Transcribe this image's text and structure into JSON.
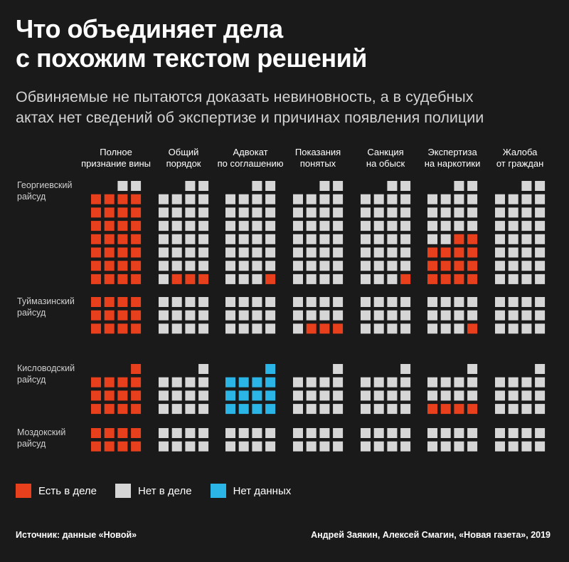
{
  "header": {
    "title_line1": "Что объединяет дела",
    "title_line2": "с похожим текстом решений",
    "subtitle_line1": "Обвиняемые не пытаются доказать невиновность, а в судебных",
    "subtitle_line2": "актах нет сведений об экспертизе и причинах появления полиции"
  },
  "legend": {
    "items": [
      {
        "label": "Есть в деле",
        "color": "#e8401c"
      },
      {
        "label": "Нет в деле",
        "color": "#d6d6d6"
      },
      {
        "label": "Нет данных",
        "color": "#2bb5e6"
      }
    ]
  },
  "footer": {
    "source": "Источник: данные «Новой»",
    "credit": "Андрей Заякин, Алексей Смагин, «Новая газета», 2019"
  },
  "chart_data": {
    "type": "waffle",
    "grid_columns": 4,
    "unit": "one square = one court case",
    "colors": {
      "yes": "#e8401c",
      "no": "#d6d6d6",
      "nodata": "#2bb5e6"
    },
    "columns": [
      [
        "Полное",
        "признание вины"
      ],
      [
        "Общий",
        "порядок"
      ],
      [
        "Адвокат",
        "по соглашению"
      ],
      [
        "Показания",
        "понятых"
      ],
      [
        "Санкция",
        "на обыск"
      ],
      [
        "Экспертиза",
        "на наркотики"
      ],
      [
        "Жалоба",
        "от граждан"
      ]
    ],
    "rows": [
      {
        "label": [
          "Георгиевский",
          "райсуд"
        ],
        "total": 30,
        "cells": [
          {
            "yes": 28,
            "no": 2,
            "nodata": 0
          },
          {
            "yes": 3,
            "no": 27,
            "nodata": 0
          },
          {
            "yes": 1,
            "no": 29,
            "nodata": 0
          },
          {
            "yes": 0,
            "no": 30,
            "nodata": 0
          },
          {
            "yes": 1,
            "no": 29,
            "nodata": 0
          },
          {
            "yes": 14,
            "no": 16,
            "nodata": 0
          },
          {
            "yes": 0,
            "no": 30,
            "nodata": 0
          }
        ]
      },
      {
        "label": [
          "Туймазинский",
          "райсуд"
        ],
        "total": 12,
        "cells": [
          {
            "yes": 12,
            "no": 0,
            "nodata": 0
          },
          {
            "yes": 0,
            "no": 12,
            "nodata": 0
          },
          {
            "yes": 0,
            "no": 12,
            "nodata": 0
          },
          {
            "yes": 3,
            "no": 9,
            "nodata": 0
          },
          {
            "yes": 0,
            "no": 12,
            "nodata": 0
          },
          {
            "yes": 1,
            "no": 11,
            "nodata": 0
          },
          {
            "yes": 0,
            "no": 12,
            "nodata": 0
          }
        ]
      },
      {
        "label": [
          "Кисловодский",
          "райсуд"
        ],
        "total": 13,
        "cells": [
          {
            "yes": 13,
            "no": 0,
            "nodata": 0
          },
          {
            "yes": 0,
            "no": 13,
            "nodata": 0
          },
          {
            "yes": 0,
            "no": 0,
            "nodata": 13
          },
          {
            "yes": 0,
            "no": 13,
            "nodata": 0
          },
          {
            "yes": 0,
            "no": 13,
            "nodata": 0
          },
          {
            "yes": 4,
            "no": 9,
            "nodata": 0
          },
          {
            "yes": 0,
            "no": 13,
            "nodata": 0
          }
        ]
      },
      {
        "label": [
          "Моздокский",
          "райсуд"
        ],
        "total": 8,
        "cells": [
          {
            "yes": 8,
            "no": 0,
            "nodata": 0
          },
          {
            "yes": 0,
            "no": 8,
            "nodata": 0
          },
          {
            "yes": 0,
            "no": 8,
            "nodata": 0
          },
          {
            "yes": 0,
            "no": 8,
            "nodata": 0
          },
          {
            "yes": 0,
            "no": 8,
            "nodata": 0
          },
          {
            "yes": 0,
            "no": 8,
            "nodata": 0
          },
          {
            "yes": 0,
            "no": 8,
            "nodata": 0
          }
        ]
      }
    ]
  }
}
